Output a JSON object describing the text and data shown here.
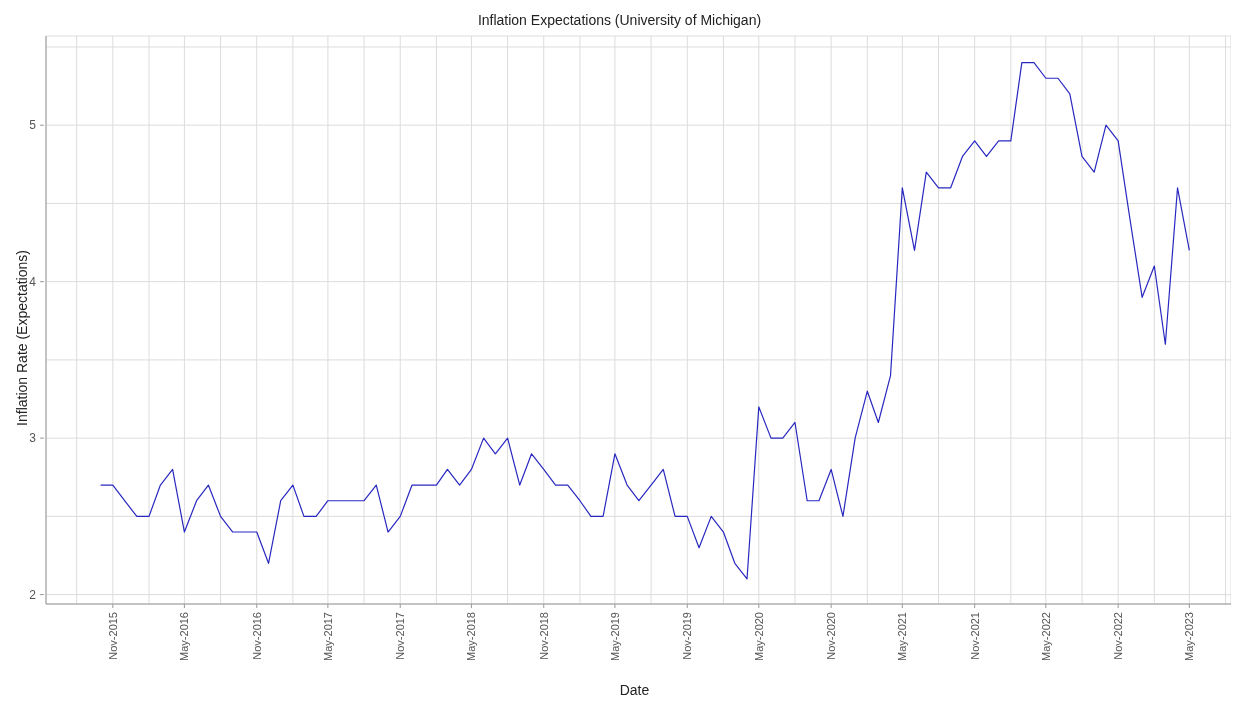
{
  "chart_data": {
    "type": "line",
    "title": "Inflation Expectations (University of Michigan)",
    "xlabel": "Date",
    "ylabel": "Inflation Rate (Expectations)",
    "x": [
      "2015-10",
      "2015-11",
      "2015-12",
      "2016-01",
      "2016-02",
      "2016-03",
      "2016-04",
      "2016-05",
      "2016-06",
      "2016-07",
      "2016-08",
      "2016-09",
      "2016-10",
      "2016-11",
      "2016-12",
      "2017-01",
      "2017-02",
      "2017-03",
      "2017-04",
      "2017-05",
      "2017-06",
      "2017-07",
      "2017-08",
      "2017-09",
      "2017-10",
      "2017-11",
      "2017-12",
      "2018-01",
      "2018-02",
      "2018-03",
      "2018-04",
      "2018-05",
      "2018-06",
      "2018-07",
      "2018-08",
      "2018-09",
      "2018-10",
      "2018-11",
      "2018-12",
      "2019-01",
      "2019-02",
      "2019-03",
      "2019-04",
      "2019-05",
      "2019-06",
      "2019-07",
      "2019-08",
      "2019-09",
      "2019-10",
      "2019-11",
      "2019-12",
      "2020-01",
      "2020-02",
      "2020-03",
      "2020-04",
      "2020-05",
      "2020-06",
      "2020-07",
      "2020-08",
      "2020-09",
      "2020-10",
      "2020-11",
      "2020-12",
      "2021-01",
      "2021-02",
      "2021-03",
      "2021-04",
      "2021-05",
      "2021-06",
      "2021-07",
      "2021-08",
      "2021-09",
      "2021-10",
      "2021-11",
      "2021-12",
      "2022-01",
      "2022-02",
      "2022-03",
      "2022-04",
      "2022-05",
      "2022-06",
      "2022-07",
      "2022-08",
      "2022-09",
      "2022-10",
      "2022-11",
      "2022-12",
      "2023-01",
      "2023-02",
      "2023-03",
      "2023-04",
      "2023-05"
    ],
    "series": [
      {
        "color": "#2828c0",
        "values": [
          2.7,
          2.7,
          2.6,
          2.5,
          2.5,
          2.7,
          2.8,
          2.4,
          2.6,
          2.7,
          2.5,
          2.4,
          2.4,
          2.4,
          2.2,
          2.6,
          2.7,
          2.5,
          2.5,
          2.6,
          2.6,
          2.6,
          2.6,
          2.7,
          2.4,
          2.5,
          2.7,
          2.7,
          2.7,
          2.8,
          2.7,
          2.8,
          3.0,
          2.9,
          3.0,
          2.7,
          2.9,
          2.8,
          2.7,
          2.7,
          2.6,
          2.5,
          2.5,
          2.9,
          2.7,
          2.6,
          2.7,
          2.8,
          2.5,
          2.5,
          2.3,
          2.5,
          2.4,
          2.2,
          2.1,
          3.2,
          3.0,
          3.0,
          3.1,
          2.6,
          2.6,
          2.8,
          2.5,
          3.0,
          3.3,
          3.1,
          3.4,
          4.6,
          4.2,
          4.7,
          4.6,
          4.6,
          4.8,
          4.9,
          4.8,
          4.9,
          4.9,
          5.4,
          5.4,
          5.3,
          5.3,
          5.2,
          4.8,
          4.7,
          5.0,
          4.9,
          4.4,
          3.9,
          4.1,
          3.6,
          4.6,
          4.2
        ]
      }
    ],
    "xlim": [
      "2015-05-15",
      "2023-08-15"
    ],
    "xticks": [
      {
        "value": "2015-08-01",
        "label": null
      },
      {
        "value": "2015-11-01",
        "label": "Nov-2015"
      },
      {
        "value": "2016-02-01",
        "label": null
      },
      {
        "value": "2016-05-01",
        "label": "May-2016"
      },
      {
        "value": "2016-08-01",
        "label": null
      },
      {
        "value": "2016-11-01",
        "label": "Nov-2016"
      },
      {
        "value": "2017-02-01",
        "label": null
      },
      {
        "value": "2017-05-01",
        "label": "May-2017"
      },
      {
        "value": "2017-08-01",
        "label": null
      },
      {
        "value": "2017-11-01",
        "label": "Nov-2017"
      },
      {
        "value": "2018-02-01",
        "label": null
      },
      {
        "value": "2018-05-01",
        "label": "May-2018"
      },
      {
        "value": "2018-08-01",
        "label": null
      },
      {
        "value": "2018-11-01",
        "label": "Nov-2018"
      },
      {
        "value": "2019-02-01",
        "label": null
      },
      {
        "value": "2019-05-01",
        "label": "May-2019"
      },
      {
        "value": "2019-08-01",
        "label": null
      },
      {
        "value": "2019-11-01",
        "label": "Nov-2019"
      },
      {
        "value": "2020-02-01",
        "label": null
      },
      {
        "value": "2020-05-01",
        "label": "May-2020"
      },
      {
        "value": "2020-08-01",
        "label": null
      },
      {
        "value": "2020-11-01",
        "label": "Nov-2020"
      },
      {
        "value": "2021-02-01",
        "label": null
      },
      {
        "value": "2021-05-01",
        "label": "May-2021"
      },
      {
        "value": "2021-08-01",
        "label": null
      },
      {
        "value": "2021-11-01",
        "label": "Nov-2021"
      },
      {
        "value": "2022-02-01",
        "label": null
      },
      {
        "value": "2022-05-01",
        "label": "May-2022"
      },
      {
        "value": "2022-08-01",
        "label": null
      },
      {
        "value": "2022-11-01",
        "label": "Nov-2022"
      },
      {
        "value": "2023-02-01",
        "label": null
      },
      {
        "value": "2023-05-01",
        "label": "May-2023"
      },
      {
        "value": "2023-08-01",
        "label": null
      }
    ],
    "ylim": [
      1.94,
      5.57
    ],
    "yticks": [
      2,
      {
        "value": 2.5,
        "label": null
      },
      3,
      {
        "value": 3.5,
        "label": null
      },
      4,
      {
        "value": 4.5,
        "label": null
      },
      5,
      {
        "value": 5.5,
        "label": null
      }
    ],
    "grid": true,
    "marker": "none",
    "line_style": "solid"
  }
}
